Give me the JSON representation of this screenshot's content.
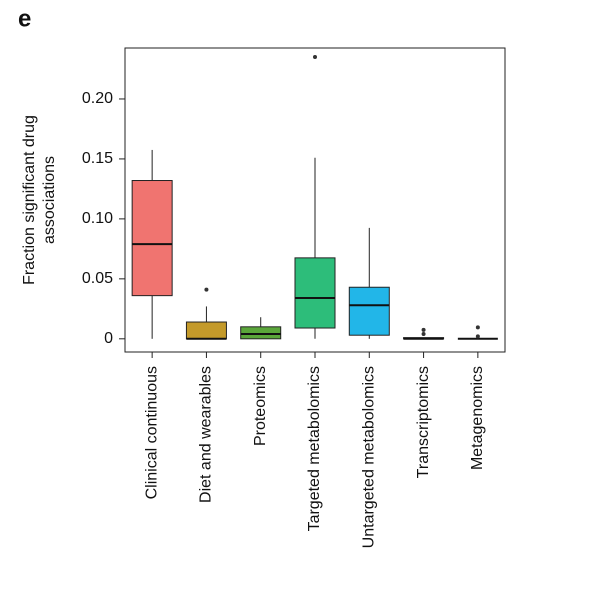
{
  "chart_data": {
    "type": "box",
    "panel_label": "e",
    "ylabel": [
      "Fraction significant drug",
      "associations"
    ],
    "categories": [
      "Clinical continuous",
      "Diet and wearables",
      "Proteomics",
      "Targeted metabolomics",
      "Untargeted metabolomics",
      "Transcriptomics",
      "Metagenomics"
    ],
    "boxes": [
      {
        "color": "#f07470",
        "min": 0,
        "q1": 0.036,
        "median": 0.079,
        "q3": 0.132,
        "max": 0.1575,
        "outliers": []
      },
      {
        "color": "#c49a2a",
        "min": 0,
        "q1": 0,
        "median": 0,
        "q3": 0.014,
        "max": 0.027,
        "outliers": [
          0.041
        ]
      },
      {
        "color": "#5aa63a",
        "min": 0,
        "q1": 0,
        "median": 0.004,
        "q3": 0.01,
        "max": 0.018,
        "outliers": []
      },
      {
        "color": "#2dbd7a",
        "min": 0,
        "q1": 0.009,
        "median": 0.034,
        "q3": 0.0675,
        "max": 0.151,
        "outliers": [
          0.235
        ]
      },
      {
        "color": "#22b6e8",
        "min": 0,
        "q1": 0.003,
        "median": 0.028,
        "q3": 0.043,
        "max": 0.0925,
        "outliers": []
      },
      {
        "color": "#8a8ae0",
        "min": 0,
        "q1": 0,
        "median": 0,
        "q3": 0.001,
        "max": 0.001,
        "outliers": [
          0.0075,
          0.004
        ]
      },
      {
        "color": "#e070d0",
        "min": 0,
        "q1": 0,
        "median": 0,
        "q3": 0,
        "max": 0,
        "outliers": [
          0.0095,
          0.002
        ]
      }
    ],
    "ylim": [
      -0.011,
      0.2425
    ],
    "yticks": [
      0,
      0.05,
      {
        "value": 0.1,
        "label": "0.10"
      },
      0.15,
      {
        "value": 0.2,
        "label": "0.20"
      }
    ]
  }
}
